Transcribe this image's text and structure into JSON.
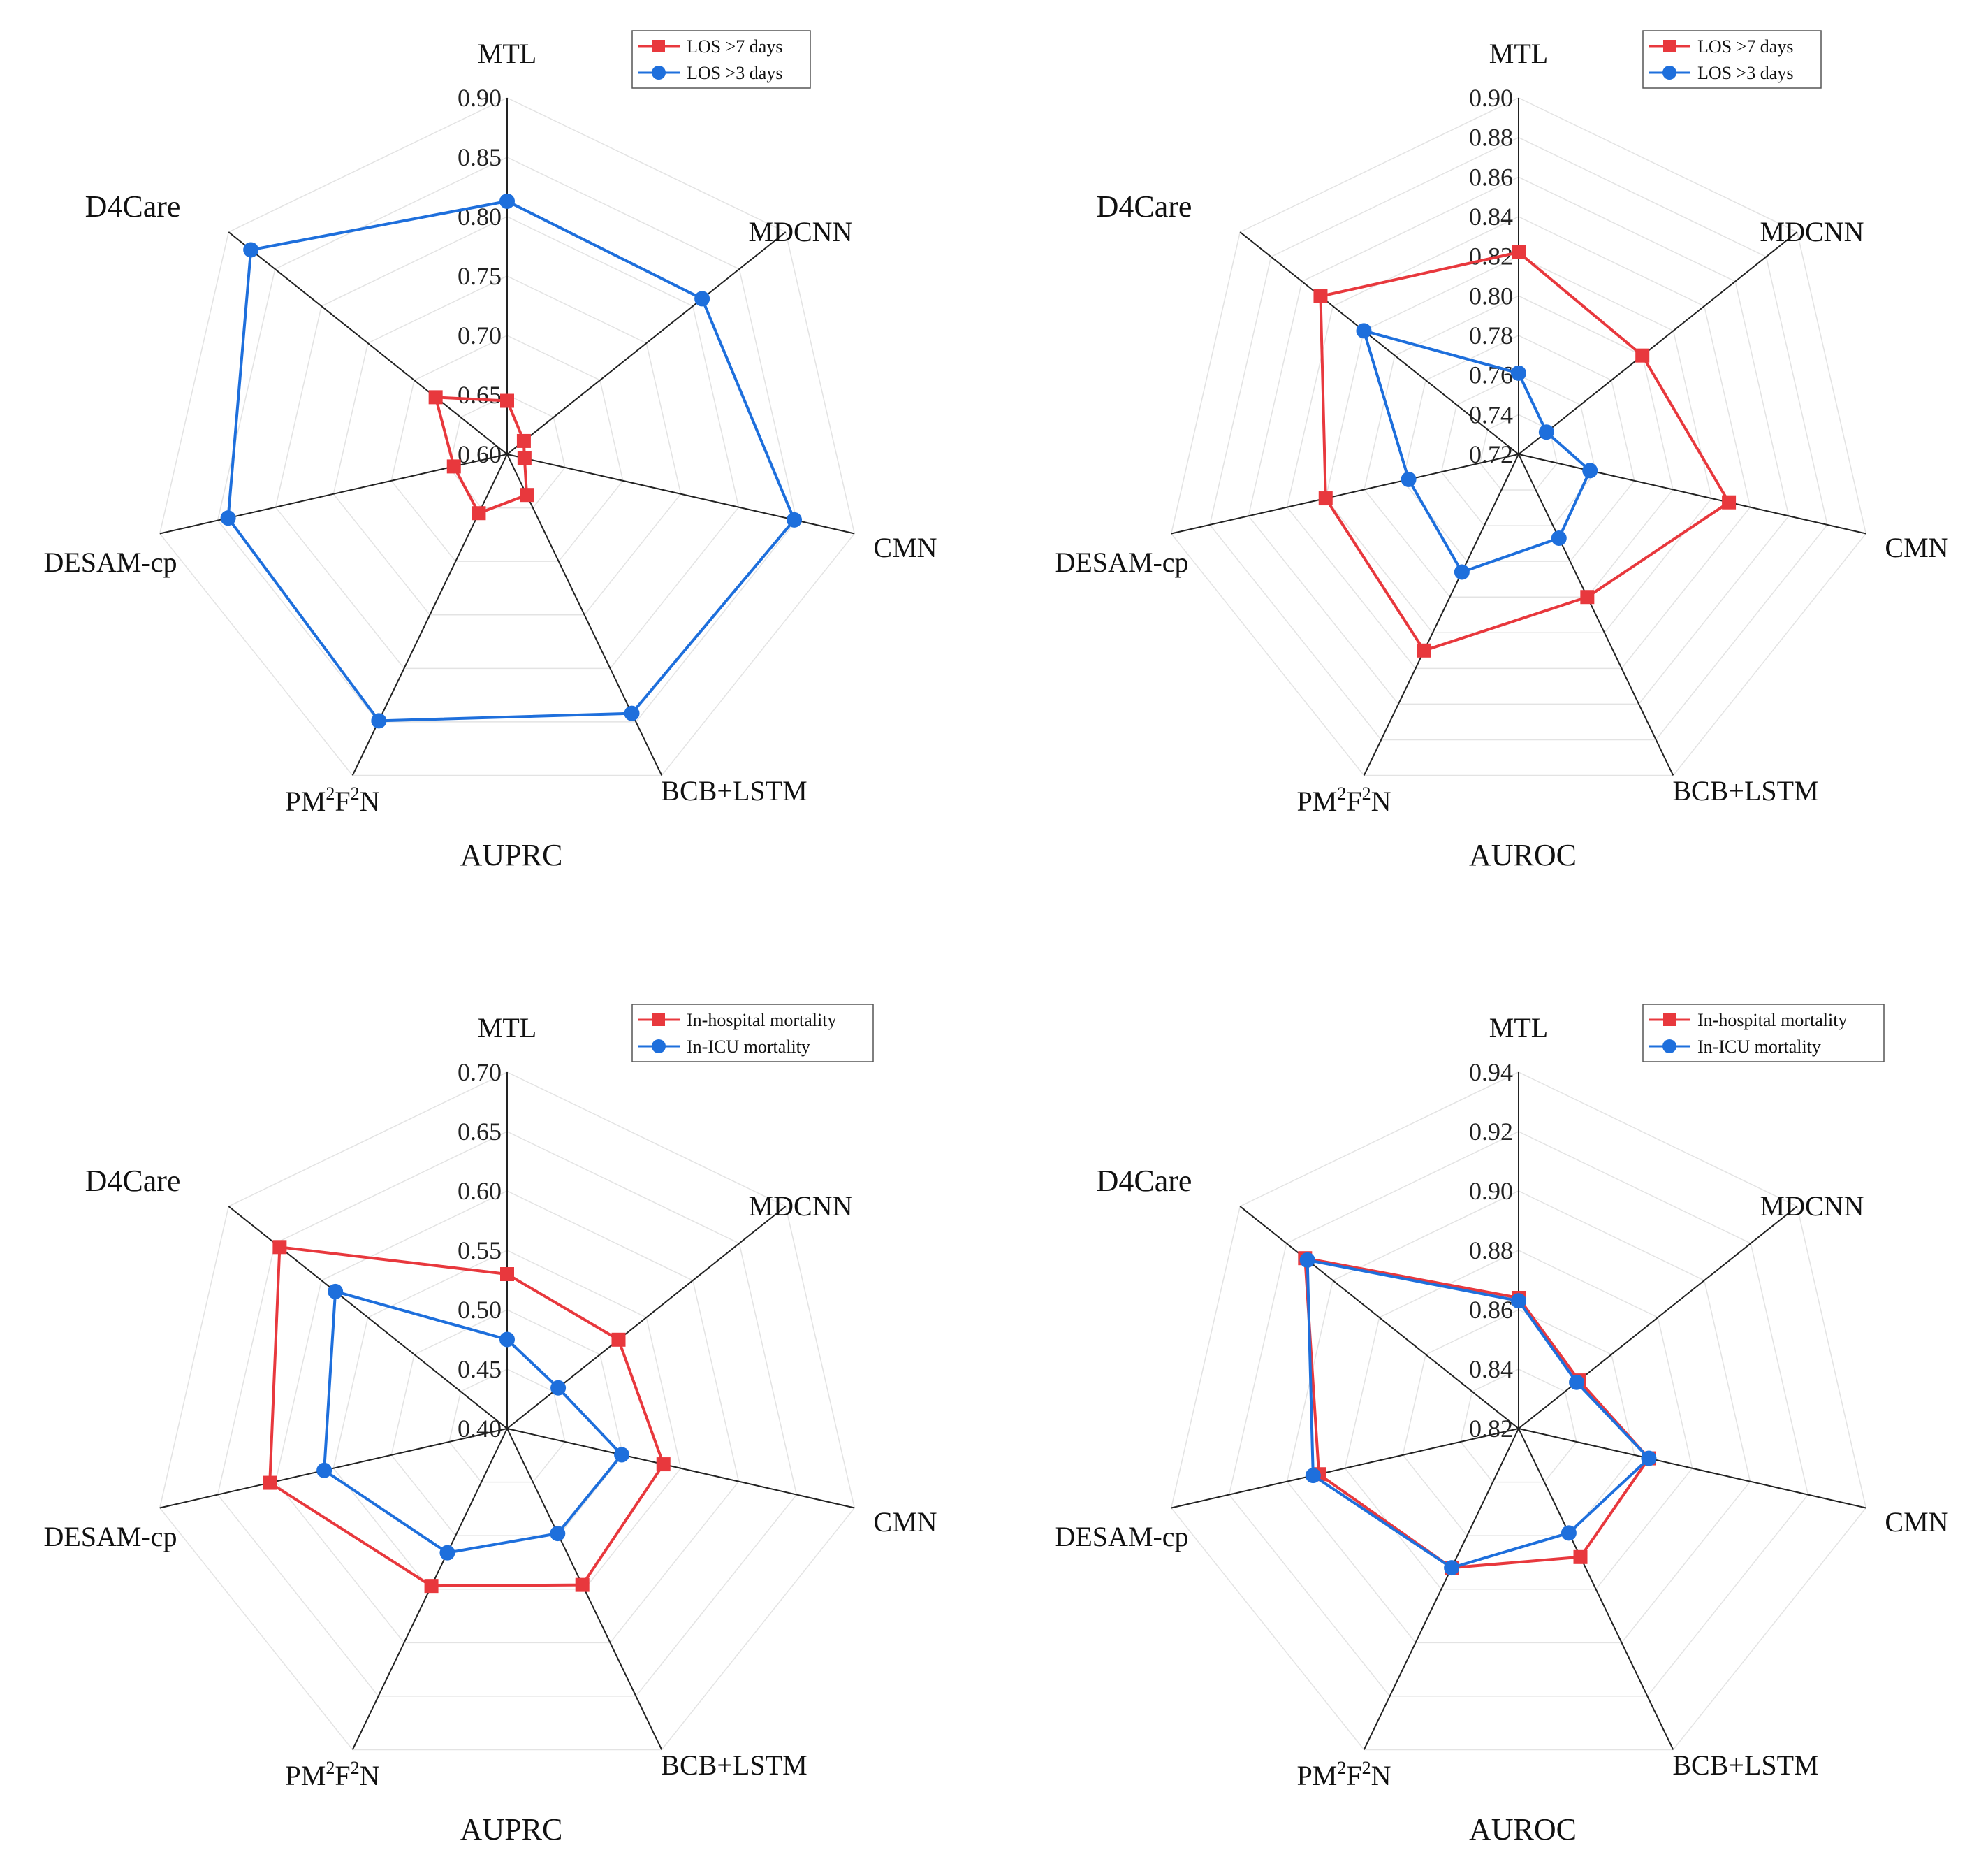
{
  "figure": {
    "colors": {
      "red": "#e8383d",
      "blue": "#1e6fdc",
      "spoke": "#222222",
      "grid": "#e3e3e3"
    },
    "markers": {
      "red": "square",
      "blue": "circle"
    }
  },
  "chart_data": [
    {
      "type": "radar",
      "metric": "AUPRC",
      "axes": [
        "MTL",
        "MDCNN",
        "CMN",
        "BCB+LSTM",
        "PM2F2N",
        "DESAM-cp",
        "D4Care"
      ],
      "ticks": [
        "0.60",
        "0.65",
        "0.70",
        "0.75",
        "0.80",
        "0.85",
        "0.90"
      ],
      "rlim": [
        0.6,
        0.9
      ],
      "series": [
        {
          "name": "LOS >7 days",
          "color": "red",
          "values": [
            0.645,
            0.618,
            0.615,
            0.638,
            0.655,
            0.646,
            0.677
          ]
        },
        {
          "name": "LOS >3 days",
          "color": "blue",
          "values": [
            0.813,
            0.81,
            0.848,
            0.842,
            0.849,
            0.841,
            0.876
          ]
        }
      ]
    },
    {
      "type": "radar",
      "metric": "AUROC",
      "axes": [
        "MTL",
        "MDCNN",
        "CMN",
        "BCB+LSTM",
        "PM2F2N",
        "DESAM-cp",
        "D4Care"
      ],
      "ticks": [
        "0.72",
        "0.74",
        "0.76",
        "0.78",
        "0.80",
        "0.82",
        "0.84",
        "0.86",
        "0.88",
        "0.90"
      ],
      "rlim": [
        0.72,
        0.9
      ],
      "series": [
        {
          "name": "LOS >7 days",
          "color": "red",
          "values": [
            0.822,
            0.8,
            0.829,
            0.8,
            0.83,
            0.82,
            0.848
          ]
        },
        {
          "name": "LOS >3 days",
          "color": "blue",
          "values": [
            0.761,
            0.738,
            0.757,
            0.767,
            0.786,
            0.777,
            0.82
          ]
        }
      ]
    },
    {
      "type": "radar",
      "metric": "AUPRC",
      "axes": [
        "MTL",
        "MDCNN",
        "CMN",
        "BCB+LSTM",
        "PM2F2N",
        "DESAM-cp",
        "D4Care"
      ],
      "ticks": [
        "0.40",
        "0.45",
        "0.50",
        "0.55",
        "0.60",
        "0.65",
        "0.70"
      ],
      "rlim": [
        0.4,
        0.7
      ],
      "series": [
        {
          "name": "In-hospital mortality",
          "color": "red",
          "values": [
            0.53,
            0.52,
            0.535,
            0.546,
            0.547,
            0.605,
            0.645
          ]
        },
        {
          "name": "In-ICU mortality",
          "color": "blue",
          "values": [
            0.475,
            0.455,
            0.499,
            0.498,
            0.516,
            0.558,
            0.585
          ]
        }
      ]
    },
    {
      "type": "radar",
      "metric": "AUROC",
      "axes": [
        "MTL",
        "MDCNN",
        "CMN",
        "BCB+LSTM",
        "PM2F2N",
        "DESAM-cp",
        "D4Care"
      ],
      "ticks": [
        "0.82",
        "0.84",
        "0.86",
        "0.88",
        "0.90",
        "0.92",
        "0.94"
      ],
      "rlim": [
        0.82,
        0.94
      ],
      "series": [
        {
          "name": "In-hospital mortality",
          "color": "red",
          "values": [
            0.864,
            0.846,
            0.865,
            0.868,
            0.872,
            0.889,
            0.912
          ]
        },
        {
          "name": "In-ICU mortality",
          "color": "blue",
          "values": [
            0.863,
            0.845,
            0.865,
            0.859,
            0.872,
            0.891,
            0.911
          ]
        }
      ]
    }
  ]
}
